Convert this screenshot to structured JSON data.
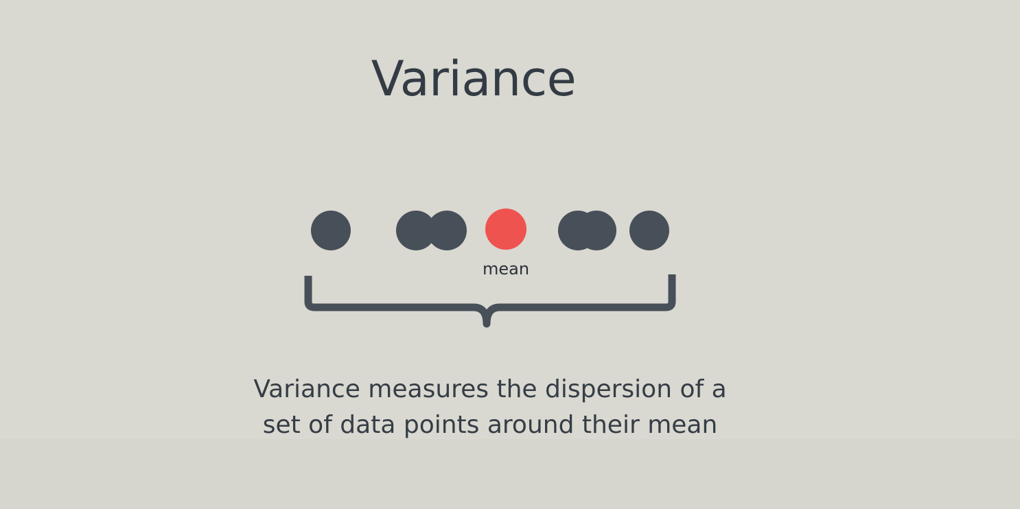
{
  "slide": {
    "title": "Variance",
    "mean_label": "mean",
    "caption_line1": "Variance measures the dispersion of a",
    "caption_line2": "set of data points around their mean"
  },
  "diagram": {
    "points": [
      {
        "name": "data-point-1",
        "color": "#474f58"
      },
      {
        "name": "data-point-2",
        "color": "#474f58"
      },
      {
        "name": "data-point-3",
        "color": "#474f58"
      },
      {
        "name": "mean-point",
        "color": "#ef5350"
      },
      {
        "name": "data-point-4",
        "color": "#474f58"
      },
      {
        "name": "data-point-5",
        "color": "#474f58"
      },
      {
        "name": "data-point-6",
        "color": "#474f58"
      }
    ],
    "brace_color": "#474f58"
  },
  "colors": {
    "background": "#d9d8d1",
    "text": "#353d45",
    "data_point": "#474f58",
    "mean_point": "#ef5350"
  }
}
